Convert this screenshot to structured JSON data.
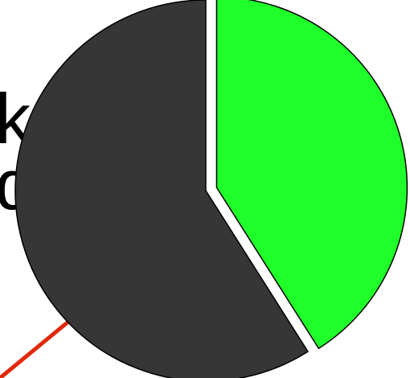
{
  "background": {
    "text_lines": [
      "ka).",
      "del."
    ],
    "text_color": "#000000"
  },
  "chart_data": {
    "type": "pie",
    "slices": [
      {
        "value": 0.41,
        "color": "#1fff29",
        "exploded": true
      },
      {
        "value": 0.59,
        "color": "#363636",
        "exploded": false
      }
    ],
    "start_angle_deg": 90,
    "direction": "clockwise",
    "edge_color": "#000000"
  },
  "decorations": {
    "pointer_line_color": "#e0280a"
  }
}
